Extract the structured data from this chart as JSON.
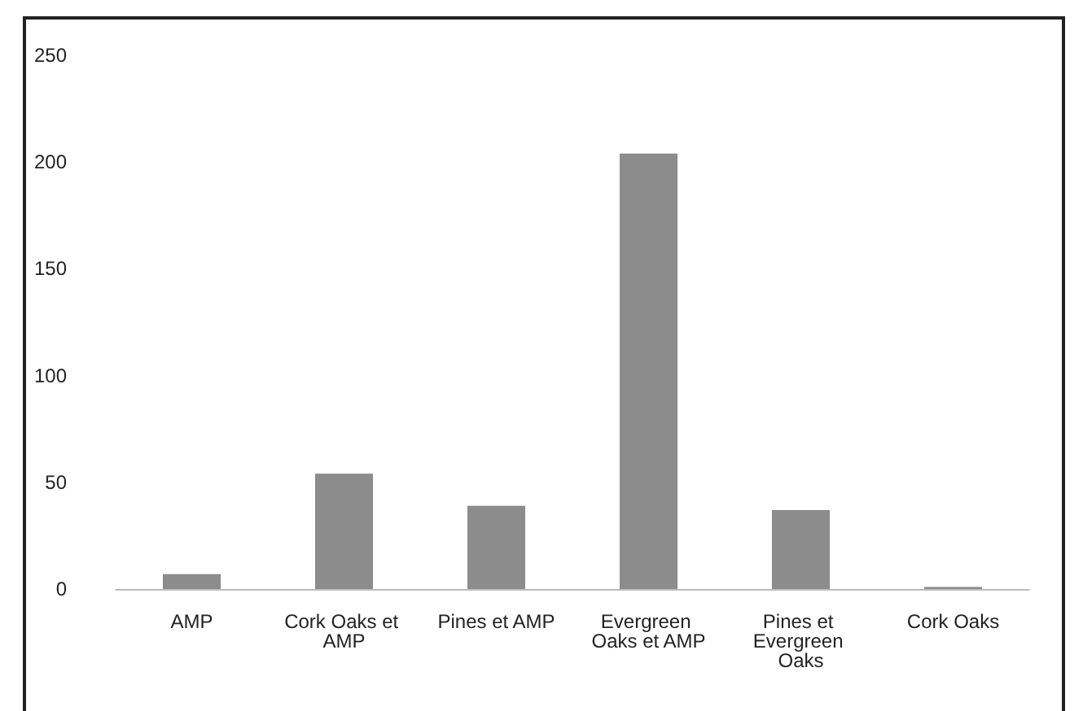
{
  "chart_data": {
    "type": "bar",
    "categories": [
      "AMP",
      "Cork Oaks et AMP",
      "Pines et AMP",
      "Evergreen Oaks et AMP",
      "Pines et Evergreen Oaks",
      "Cork Oaks"
    ],
    "values": [
      7,
      54,
      39,
      204,
      37,
      1
    ],
    "color": "#8c8c8c",
    "ylim": [
      0,
      250
    ],
    "yticks": [
      0,
      50,
      100,
      150,
      200,
      250
    ],
    "grid": false
  }
}
